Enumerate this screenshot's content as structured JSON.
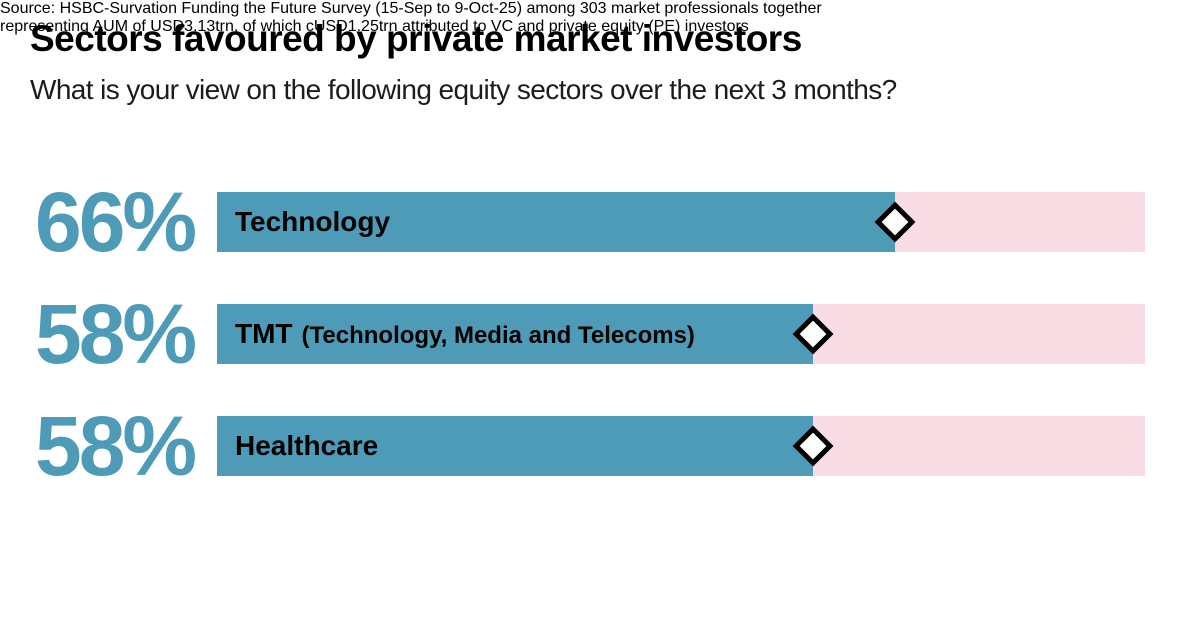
{
  "header": {
    "title": "Sectors favoured by private market investors",
    "subtitle": "What is your view on the following equity sectors over the next 3 months?"
  },
  "chart_data": {
    "type": "bar",
    "orientation": "horizontal",
    "title": "Sectors favoured by private market investors",
    "subtitle": "What is your view on the following equity sectors over the next 3 months?",
    "categories": [
      "Technology",
      "TMT (Technology, Media and Telecoms)",
      "Healthcare"
    ],
    "values": [
      66,
      58,
      58
    ],
    "unit": "%",
    "value_labels": [
      "66%",
      "58%",
      "58%"
    ],
    "xlim": [
      0,
      90.3
    ],
    "grid": false,
    "legend": false,
    "marker": "white diamond with black outline at end of each bar",
    "colors": {
      "bar_fill": "#4E9BB8",
      "bar_track": "#FADDE4",
      "value_text": "#4E9BB8",
      "label_text": "#000000",
      "marker_fill": "#FFFFFF",
      "marker_border": "#000000",
      "background": "#FFFFFF"
    }
  },
  "rows": [
    {
      "value_label": "66%",
      "name": "Technology",
      "name_detail": ""
    },
    {
      "value_label": "58%",
      "name": "TMT",
      "name_detail": "(Technology, Media and Telecoms)"
    },
    {
      "value_label": "58%",
      "name": "Healthcare",
      "name_detail": ""
    }
  ],
  "source": {
    "line1": "Source: HSBC-Survation Funding the Future Survey (15-Sep to 9-Oct-25) among 303 market professionals together",
    "line2": "representing AUM of USD3.13trn, of which cUSD1.25trn attributed to VC and private equity (PE) investors"
  }
}
